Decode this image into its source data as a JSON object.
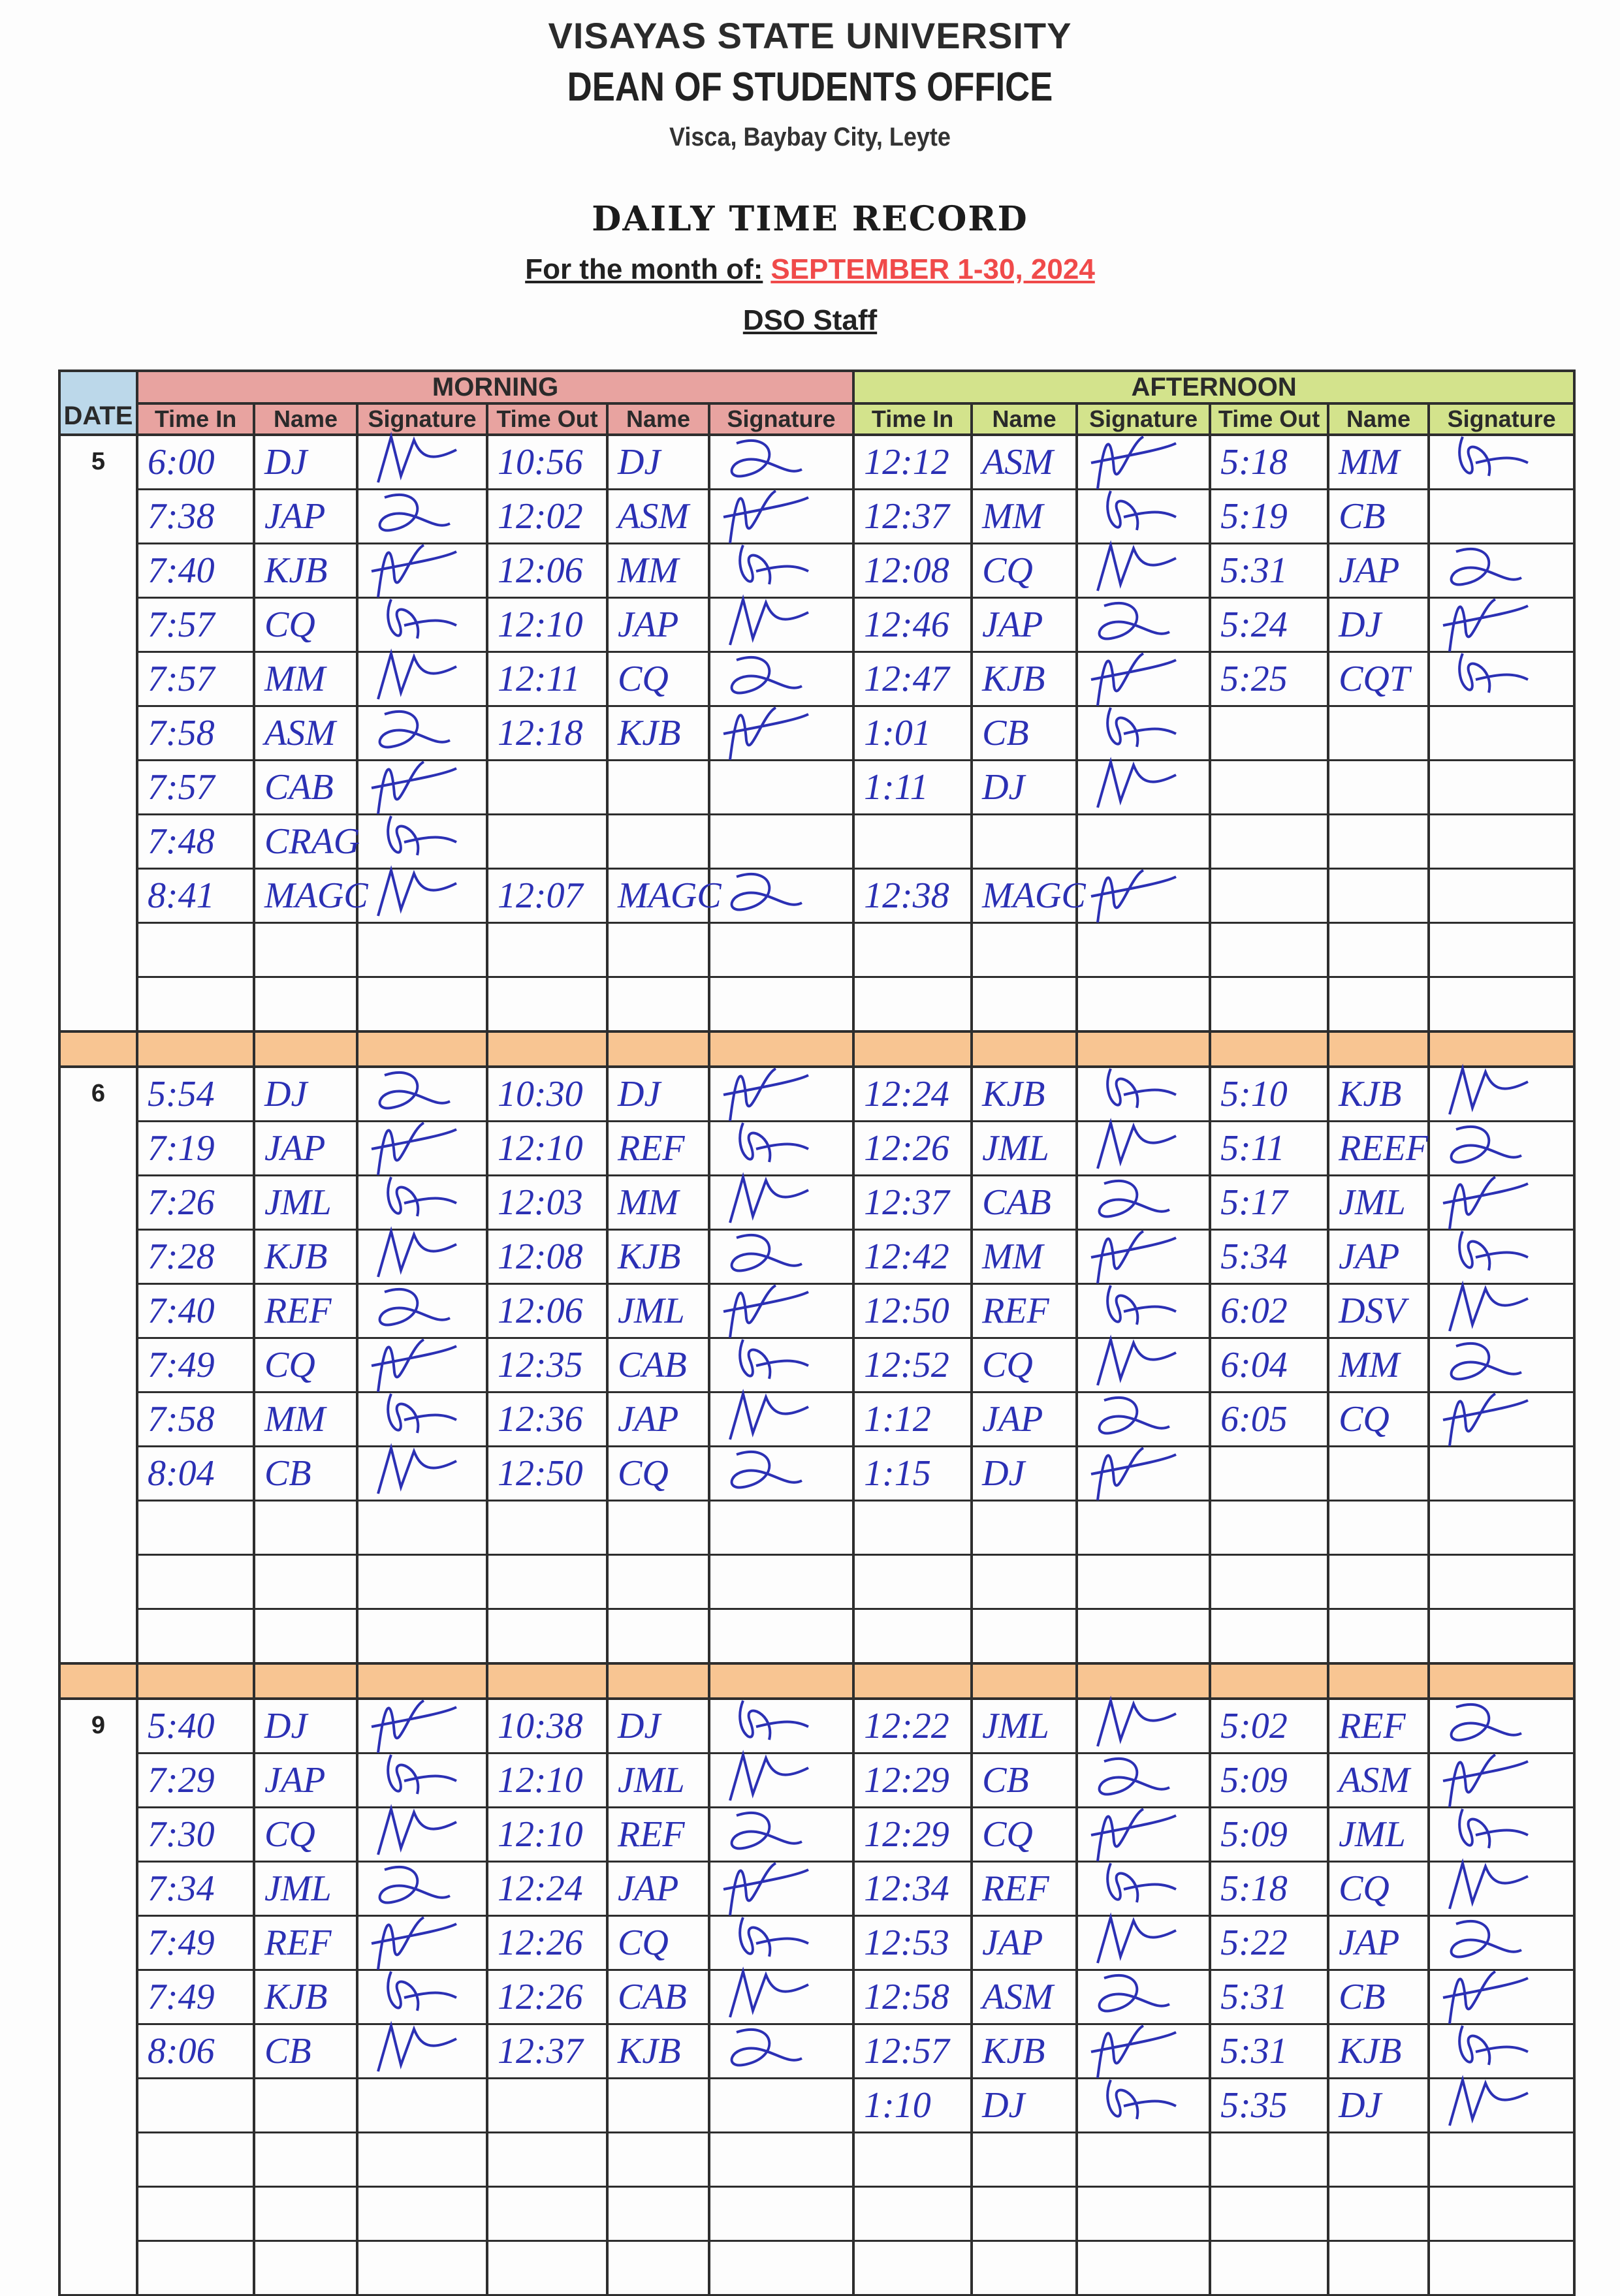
{
  "header": {
    "university": "VISAYAS STATE UNIVERSITY",
    "office": "DEAN OF STUDENTS OFFICE",
    "address": "Visca, Baybay City, Leyte",
    "title": "DAILY TIME RECORD",
    "month_label": "For the month of:",
    "month_value": "SEPTEMBER 1-30, 2024",
    "group": "DSO Staff"
  },
  "colors": {
    "ink": "#2b30b4",
    "month_value": "#f04a4a",
    "morning": "#e8a3a0",
    "afternoon": "#d3e38c",
    "date": "#bcd8ea",
    "separator": "#f8c592"
  },
  "table": {
    "date_header": "DATE",
    "morning_label": "MORNING",
    "afternoon_label": "AFTERNOON",
    "columns": [
      "Time In",
      "Name",
      "Signature",
      "Time Out",
      "Name",
      "Signature",
      "Time In",
      "Name",
      "Signature",
      "Time Out",
      "Name",
      "Signature"
    ],
    "days": [
      {
        "date": "5",
        "rows": [
          {
            "am_in": "6:00",
            "am_in_name": "DJ",
            "am_in_sig": true,
            "am_out": "10:56",
            "am_out_name": "DJ",
            "am_out_sig": true,
            "pm_in": "12:12",
            "pm_in_name": "ASM",
            "pm_in_sig": true,
            "pm_out": "5:18",
            "pm_out_name": "MM",
            "pm_out_sig": true
          },
          {
            "am_in": "7:38",
            "am_in_name": "JAP",
            "am_in_sig": true,
            "am_out": "12:02",
            "am_out_name": "ASM",
            "am_out_sig": true,
            "pm_in": "12:37",
            "pm_in_name": "MM",
            "pm_in_sig": true,
            "pm_out": "5:19",
            "pm_out_name": "CB",
            "pm_out_sig": false
          },
          {
            "am_in": "7:40",
            "am_in_name": "KJB",
            "am_in_sig": true,
            "am_out": "12:06",
            "am_out_name": "MM",
            "am_out_sig": true,
            "pm_in": "12:08",
            "pm_in_name": "CQ",
            "pm_in_sig": true,
            "pm_out": "5:31",
            "pm_out_name": "JAP",
            "pm_out_sig": true
          },
          {
            "am_in": "7:57",
            "am_in_name": "CQ",
            "am_in_sig": true,
            "am_out": "12:10",
            "am_out_name": "JAP",
            "am_out_sig": true,
            "pm_in": "12:46",
            "pm_in_name": "JAP",
            "pm_in_sig": true,
            "pm_out": "5:24",
            "pm_out_name": "DJ",
            "pm_out_sig": true
          },
          {
            "am_in": "7:57",
            "am_in_name": "MM",
            "am_in_sig": true,
            "am_out": "12:11",
            "am_out_name": "CQ",
            "am_out_sig": true,
            "pm_in": "12:47",
            "pm_in_name": "KJB",
            "pm_in_sig": true,
            "pm_out": "5:25",
            "pm_out_name": "CQT",
            "pm_out_sig": true
          },
          {
            "am_in": "7:58",
            "am_in_name": "ASM",
            "am_in_sig": true,
            "am_out": "12:18",
            "am_out_name": "KJB",
            "am_out_sig": true,
            "pm_in": "1:01",
            "pm_in_name": "CB",
            "pm_in_sig": true
          },
          {
            "am_in": "7:57",
            "am_in_name": "CAB",
            "am_in_sig": true,
            "pm_in": "1:11",
            "pm_in_name": "DJ",
            "pm_in_sig": true
          },
          {
            "am_in": "7:48",
            "am_in_name": "CRAG",
            "am_in_sig": true
          },
          {
            "am_in": "8:41",
            "am_in_name": "MAGC",
            "am_in_sig": true,
            "am_out": "12:07",
            "am_out_name": "MAGC",
            "am_out_sig": true,
            "pm_in": "12:38",
            "pm_in_name": "MAGC",
            "pm_in_sig": true
          },
          {},
          {}
        ]
      },
      {
        "date": "6",
        "rows": [
          {
            "am_in": "5:54",
            "am_in_name": "DJ",
            "am_in_sig": true,
            "am_out": "10:30",
            "am_out_name": "DJ",
            "am_out_sig": true,
            "pm_in": "12:24",
            "pm_in_name": "KJB",
            "pm_in_sig": true,
            "pm_out": "5:10",
            "pm_out_name": "KJB",
            "pm_out_sig": true
          },
          {
            "am_in": "7:19",
            "am_in_name": "JAP",
            "am_in_sig": true,
            "am_out": "12:10",
            "am_out_name": "REF",
            "am_out_sig": true,
            "pm_in": "12:26",
            "pm_in_name": "JML",
            "pm_in_sig": true,
            "pm_out": "5:11",
            "pm_out_name": "REEF",
            "pm_out_sig": true
          },
          {
            "am_in": "7:26",
            "am_in_name": "JML",
            "am_in_sig": true,
            "am_out": "12:03",
            "am_out_name": "MM",
            "am_out_sig": true,
            "pm_in": "12:37",
            "pm_in_name": "CAB",
            "pm_in_sig": true,
            "pm_out": "5:17",
            "pm_out_name": "JML",
            "pm_out_sig": true
          },
          {
            "am_in": "7:28",
            "am_in_name": "KJB",
            "am_in_sig": true,
            "am_out": "12:08",
            "am_out_name": "KJB",
            "am_out_sig": true,
            "pm_in": "12:42",
            "pm_in_name": "MM",
            "pm_in_sig": true,
            "pm_out": "5:34",
            "pm_out_name": "JAP",
            "pm_out_sig": true
          },
          {
            "am_in": "7:40",
            "am_in_name": "REF",
            "am_in_sig": true,
            "am_out": "12:06",
            "am_out_name": "JML",
            "am_out_sig": true,
            "pm_in": "12:50",
            "pm_in_name": "REF",
            "pm_in_sig": true,
            "pm_out": "6:02",
            "pm_out_name": "DSV",
            "pm_out_sig": true
          },
          {
            "am_in": "7:49",
            "am_in_name": "CQ",
            "am_in_sig": true,
            "am_out": "12:35",
            "am_out_name": "CAB",
            "am_out_sig": true,
            "pm_in": "12:52",
            "pm_in_name": "CQ",
            "pm_in_sig": true,
            "pm_out": "6:04",
            "pm_out_name": "MM",
            "pm_out_sig": true
          },
          {
            "am_in": "7:58",
            "am_in_name": "MM",
            "am_in_sig": true,
            "am_out": "12:36",
            "am_out_name": "JAP",
            "am_out_sig": true,
            "pm_in": "1:12",
            "pm_in_name": "JAP",
            "pm_in_sig": true,
            "pm_out": "6:05",
            "pm_out_name": "CQ",
            "pm_out_sig": true
          },
          {
            "am_in": "8:04",
            "am_in_name": "CB",
            "am_in_sig": true,
            "am_out": "12:50",
            "am_out_name": "CQ",
            "am_out_sig": true,
            "pm_in": "1:15",
            "pm_in_name": "DJ",
            "pm_in_sig": true
          },
          {},
          {},
          {}
        ]
      },
      {
        "date": "9",
        "rows": [
          {
            "am_in": "5:40",
            "am_in_name": "DJ",
            "am_in_sig": true,
            "am_out": "10:38",
            "am_out_name": "DJ",
            "am_out_sig": true,
            "pm_in": "12:22",
            "pm_in_name": "JML",
            "pm_in_sig": true,
            "pm_out": "5:02",
            "pm_out_name": "REF",
            "pm_out_sig": true
          },
          {
            "am_in": "7:29",
            "am_in_name": "JAP",
            "am_in_sig": true,
            "am_out": "12:10",
            "am_out_name": "JML",
            "am_out_sig": true,
            "pm_in": "12:29",
            "pm_in_name": "CB",
            "pm_in_sig": true,
            "pm_out": "5:09",
            "pm_out_name": "ASM",
            "pm_out_sig": true
          },
          {
            "am_in": "7:30",
            "am_in_name": "CQ",
            "am_in_sig": true,
            "am_out": "12:10",
            "am_out_name": "REF",
            "am_out_sig": true,
            "pm_in": "12:29",
            "pm_in_name": "CQ",
            "pm_in_sig": true,
            "pm_out": "5:09",
            "pm_out_name": "JML",
            "pm_out_sig": true
          },
          {
            "am_in": "7:34",
            "am_in_name": "JML",
            "am_in_sig": true,
            "am_out": "12:24",
            "am_out_name": "JAP",
            "am_out_sig": true,
            "pm_in": "12:34",
            "pm_in_name": "REF",
            "pm_in_sig": true,
            "pm_out": "5:18",
            "pm_out_name": "CQ",
            "pm_out_sig": true
          },
          {
            "am_in": "7:49",
            "am_in_name": "REF",
            "am_in_sig": true,
            "am_out": "12:26",
            "am_out_name": "CQ",
            "am_out_sig": true,
            "pm_in": "12:53",
            "pm_in_name": "JAP",
            "pm_in_sig": true,
            "pm_out": "5:22",
            "pm_out_name": "JAP",
            "pm_out_sig": true
          },
          {
            "am_in": "7:49",
            "am_in_name": "KJB",
            "am_in_sig": true,
            "am_out": "12:26",
            "am_out_name": "CAB",
            "am_out_sig": true,
            "pm_in": "12:58",
            "pm_in_name": "ASM",
            "pm_in_sig": true,
            "pm_out": "5:31",
            "pm_out_name": "CB",
            "pm_out_sig": true
          },
          {
            "am_in": "8:06",
            "am_in_name": "CB",
            "am_in_sig": true,
            "am_out": "12:37",
            "am_out_name": "KJB",
            "am_out_sig": true,
            "pm_in": "12:57",
            "pm_in_name": "KJB",
            "pm_in_sig": true,
            "pm_out": "5:31",
            "pm_out_name": "KJB",
            "pm_out_sig": true
          },
          {
            "pm_in": "1:10",
            "pm_in_name": "DJ",
            "pm_in_sig": true,
            "pm_out": "5:35",
            "pm_out_name": "DJ",
            "pm_out_sig": true
          },
          {},
          {},
          {}
        ]
      }
    ]
  }
}
